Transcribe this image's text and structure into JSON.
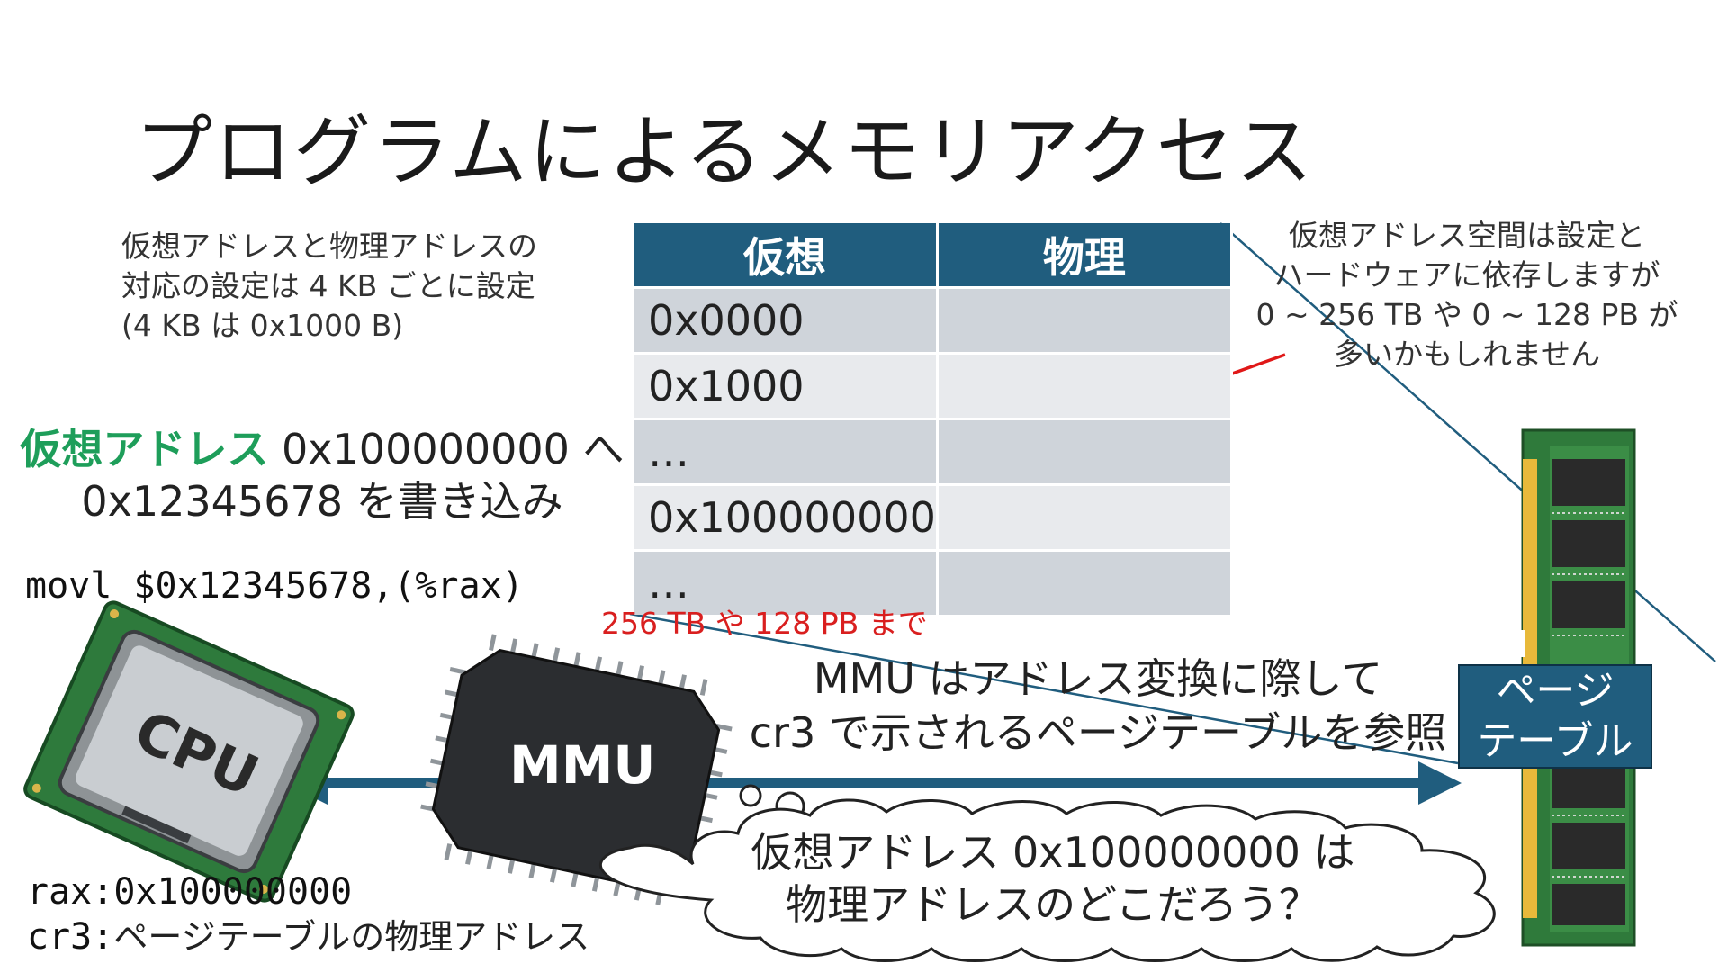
{
  "title": "プログラムによるメモリアクセス",
  "note_left": [
    "仮想アドレスと物理アドレスの",
    "対応の設定は 4 KB ごとに設定",
    "(4 KB は 0x1000 B)"
  ],
  "note_right": [
    "仮想アドレス空間は設定と",
    "ハードウェアに依存しますが",
    "0 ~ 256 TB や 0 ~ 128 PB が",
    "多いかもしれません"
  ],
  "table": {
    "headers": [
      "仮想",
      "物理"
    ],
    "rows": [
      {
        "virtual": "0x0000",
        "physical": ""
      },
      {
        "virtual": "0x1000",
        "physical": ""
      },
      {
        "virtual": "…",
        "physical": ""
      },
      {
        "virtual": "0x100000000",
        "physical": ""
      },
      {
        "virtual": "…",
        "physical": ""
      }
    ]
  },
  "range_note": "256 TB や 128 PB まで",
  "write_instruction": {
    "highlight": "仮想アドレス",
    "line1_rest": " 0x100000000 へ",
    "line2": "0x12345678 を書き込み"
  },
  "asm_code": "movl $0x12345678,(%rax)",
  "cpu_label": "CPU",
  "mmu_label": "MMU",
  "mmu_note": [
    "MMU はアドレス変換に際して",
    "cr3 で示されるページテーブルを参照"
  ],
  "page_table_label": [
    "ページ",
    "テーブル"
  ],
  "registers": {
    "rax_label": "rax:",
    "rax_value": "0x100000000",
    "cr3_label": "cr3:",
    "cr3_value": "ページテーブルの物理アドレス"
  },
  "thought": [
    "仮想アドレス 0x100000000 は",
    "物理アドレスのどこだろう？"
  ],
  "colors": {
    "accent": "#205d7e",
    "highlight_green": "#1e9e5a",
    "annotation_red": "#d91f1f",
    "table_row_dark": "#cfd4da",
    "table_row_light": "#e8eaed"
  }
}
